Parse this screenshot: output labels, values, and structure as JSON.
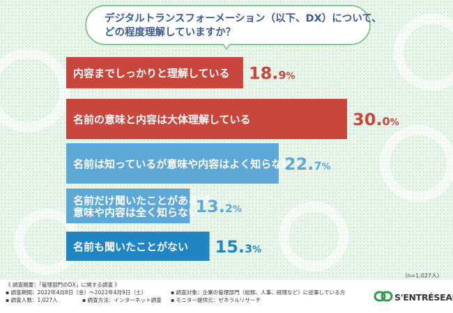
{
  "title": {
    "line1": "デジタルトランスフォーメーション（以下、DX）について、",
    "line2": "どの程度理解していますか？"
  },
  "chart_data": {
    "type": "bar",
    "orientation": "horizontal",
    "categories": [
      [
        "内容までしっかりと理解している"
      ],
      [
        "名前の意味と内容は大体理解している"
      ],
      [
        "名前は知っているが意味や内容はよく知らない"
      ],
      [
        "名前だけ聞いたことがあるが",
        "意味や内容は全く知らない"
      ],
      [
        "名前も聞いたことがない"
      ]
    ],
    "values": [
      18.9,
      30.0,
      22.7,
      13.2,
      15.3
    ],
    "value_labels": [
      {
        "int": "18.",
        "dec": "9",
        "unit": "%"
      },
      {
        "int": "30.",
        "dec": "0",
        "unit": "%"
      },
      {
        "int": "22.",
        "dec": "7",
        "unit": "%"
      },
      {
        "int": "13.",
        "dec": "2",
        "unit": "%"
      },
      {
        "int": "15.",
        "dec": "3",
        "unit": "%"
      }
    ],
    "colors": [
      "#c8463c",
      "#c8463c",
      "#5ea8d6",
      "#5ea8d6",
      "#1f86c3"
    ],
    "label_colors": [
      "#c8463c",
      "#c8463c",
      "#5ea8d6",
      "#5ea8d6",
      "#1f86c3"
    ]
  },
  "sample_note": "（n=1,027人）",
  "footer": {
    "survey_title": "《 調査概要：「管理部門のDX」に関する調査 》",
    "period": "▪ 調査期間：2022年4月8日（金）～2022年4月9日（土）",
    "respondents": "▪ 調査人数：1,027人",
    "method": "▪ 調査方法：インターネット調査",
    "target": "▪ 調査対象：企業の管理部門（総務、人事、経理など）に従事している方",
    "provider": "▪ モニター提供元：ゼネラルリサーチ"
  },
  "logo": {
    "text": "S'ENTRÉSEAU",
    "color": "#2e9a4a"
  }
}
